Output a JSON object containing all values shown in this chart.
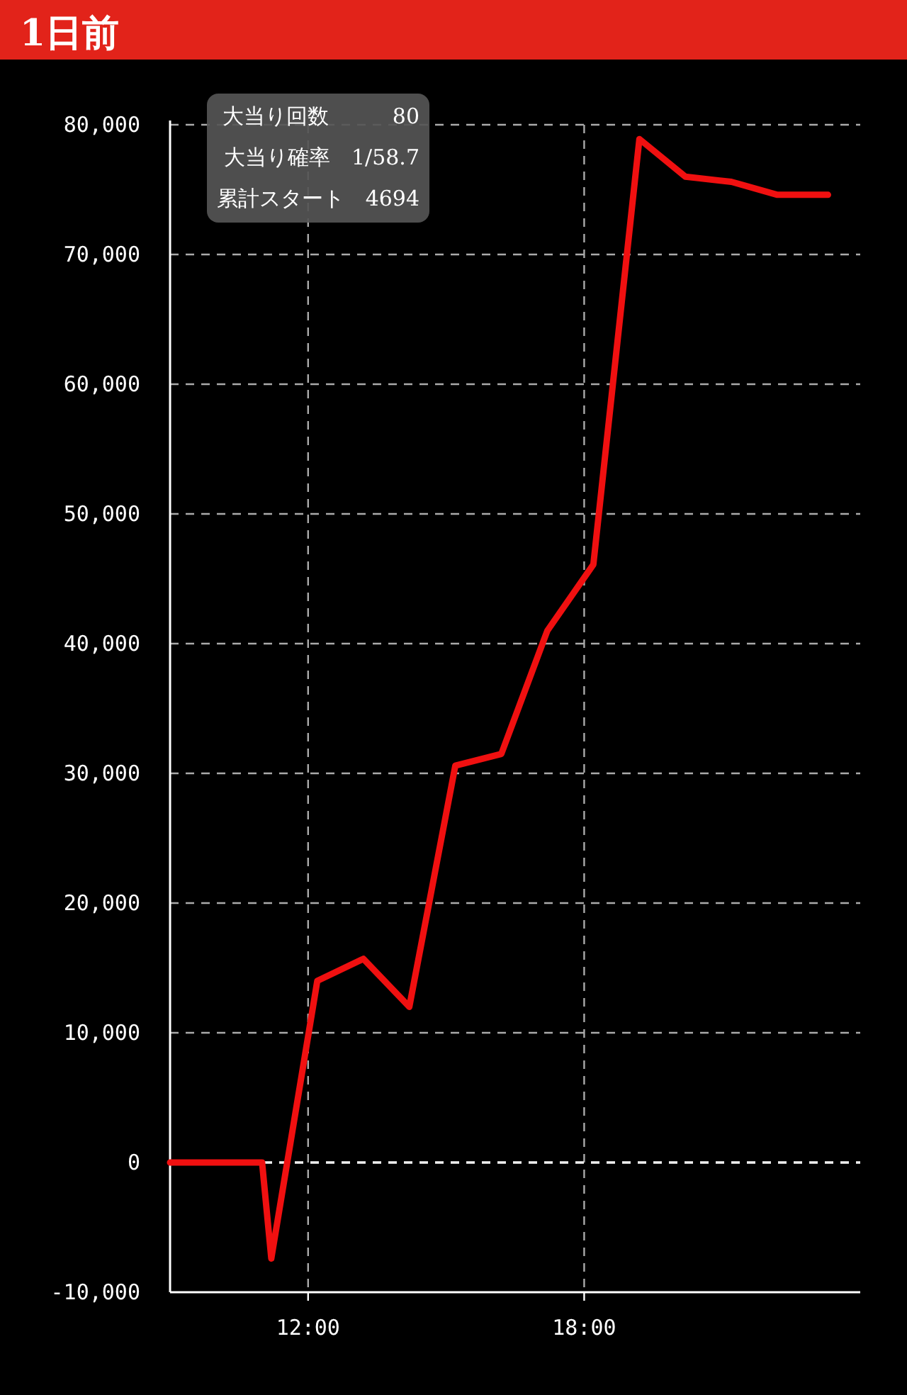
{
  "chart_data": {
    "type": "line",
    "title": "1日前",
    "x": [
      9,
      11,
      11.2,
      12.2,
      13.2,
      14.2,
      15.2,
      16.2,
      17.2,
      18.2,
      19.2,
      20.2,
      21.2,
      22.2,
      23.3
    ],
    "series": [
      {
        "color": "#f01010",
        "values": [
          0,
          0,
          -7400,
          14000,
          15700,
          12000,
          30600,
          31500,
          41000,
          46100,
          78900,
          76000,
          75600,
          74600,
          74600
        ]
      }
    ],
    "xlim": [
      9,
      24
    ],
    "xticks": [
      {
        "value": 12,
        "label": "12:00"
      },
      {
        "value": 18,
        "label": "18:00"
      }
    ],
    "ylim": [
      -10000,
      80000
    ],
    "yticks": [
      {
        "value": -10000,
        "label": "-10,000"
      },
      {
        "value": 0,
        "label": "0"
      },
      {
        "value": 10000,
        "label": "10,000"
      },
      {
        "value": 20000,
        "label": "20,000"
      },
      {
        "value": 30000,
        "label": "30,000"
      },
      {
        "value": 40000,
        "label": "40,000"
      },
      {
        "value": 50000,
        "label": "50,000"
      },
      {
        "value": 60000,
        "label": "60,000"
      },
      {
        "value": 70000,
        "label": "70,000"
      },
      {
        "value": 80000,
        "label": "80,000"
      }
    ],
    "grid": true,
    "marker": "none",
    "line_style": "solid",
    "ref_lines": [
      {
        "axis": "y",
        "value": 0,
        "color": "#eeeeee",
        "line_style": "dashed"
      }
    ],
    "annotations": [
      "大当り回数　　　80",
      "大当り確率　1/58.7",
      "累計スタート　4694"
    ]
  }
}
